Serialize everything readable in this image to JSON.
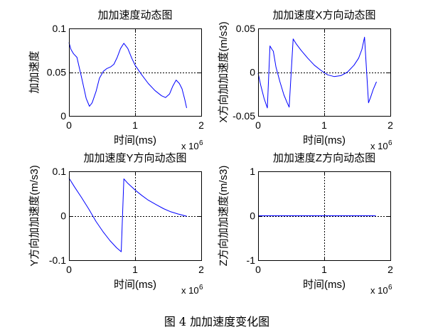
{
  "figure": {
    "caption": "图 4 加加速度变化图"
  },
  "style": {
    "axes_color": "#000000",
    "grid_color": "#000000",
    "background": "#ffffff"
  },
  "chart_data": [
    {
      "type": "line",
      "title": "加加速度动态图",
      "xlabel": "时间(ms)",
      "ylabel": "加加速度",
      "x_multiplier": "x 10",
      "x_exponent": "6",
      "xlim": [
        0,
        2
      ],
      "ylim": [
        0,
        0.1
      ],
      "xtick_labels": [
        "0",
        "1",
        "2"
      ],
      "ytick_labels": [
        "0",
        "0.05",
        "0.1"
      ],
      "grid": true,
      "series": [
        {
          "color": "#0000ff",
          "x": [
            0,
            0.03,
            0.07,
            0.12,
            0.19,
            0.26,
            0.31,
            0.35,
            0.41,
            0.46,
            0.52,
            0.57,
            0.63,
            0.68,
            0.73,
            0.78,
            0.83,
            0.89,
            0.95,
            1.0,
            1.1,
            1.2,
            1.3,
            1.4,
            1.46,
            1.52,
            1.57,
            1.62,
            1.67,
            1.71,
            1.75,
            1.78
          ],
          "y": [
            0.084,
            0.076,
            0.071,
            0.067,
            0.044,
            0.02,
            0.011,
            0.015,
            0.028,
            0.043,
            0.051,
            0.054,
            0.056,
            0.059,
            0.067,
            0.077,
            0.083,
            0.077,
            0.066,
            0.058,
            0.047,
            0.037,
            0.029,
            0.023,
            0.021,
            0.025,
            0.034,
            0.041,
            0.037,
            0.031,
            0.019,
            0.009
          ]
        }
      ]
    },
    {
      "type": "line",
      "title": "加加速度X方向动态图",
      "xlabel": "时间(ms)",
      "ylabel": "X方向加加速度(m/s3)",
      "x_multiplier": "x 10",
      "x_exponent": "6",
      "xlim": [
        0,
        2
      ],
      "ylim": [
        -0.05,
        0.05
      ],
      "xtick_labels": [
        "0",
        "1",
        "2"
      ],
      "ytick_labels": [
        "-0.05",
        "0",
        "0.05"
      ],
      "grid": true,
      "series": [
        {
          "color": "#0000ff",
          "x": [
            0,
            0.04,
            0.09,
            0.14,
            0.18,
            0.21,
            0.23,
            0.27,
            0.33,
            0.39,
            0.44,
            0.47,
            0.53,
            0.58,
            0.65,
            0.75,
            0.85,
            0.95,
            1.05,
            1.15,
            1.25,
            1.35,
            1.45,
            1.52,
            1.57,
            1.61,
            1.67,
            1.7,
            1.74,
            1.79
          ],
          "y": [
            -0.001,
            -0.015,
            -0.03,
            -0.041,
            0.03,
            0.026,
            0.024,
            0.006,
            -0.011,
            -0.026,
            -0.035,
            -0.04,
            0.038,
            0.032,
            0.025,
            0.016,
            0.008,
            0.002,
            -0.003,
            -0.005,
            -0.004,
            0.0,
            0.008,
            0.016,
            0.026,
            0.04,
            -0.035,
            -0.029,
            -0.02,
            -0.011
          ]
        }
      ]
    },
    {
      "type": "line",
      "title": "加加速度Y方向动态图",
      "xlabel": "时间(ms)",
      "ylabel": "Y方向加加速度(m/s3)",
      "x_multiplier": "x 10",
      "x_exponent": "6",
      "xlim": [
        0,
        2
      ],
      "ylim": [
        -0.1,
        0.1
      ],
      "xtick_labels": [
        "0",
        "1",
        "2"
      ],
      "ytick_labels": [
        "-0.1",
        "0",
        "0.1"
      ],
      "grid": true,
      "series": [
        {
          "color": "#0000ff",
          "x": [
            0,
            0.08,
            0.19,
            0.3,
            0.41,
            0.52,
            0.62,
            0.72,
            0.79,
            0.83,
            0.89,
            1.0,
            1.1,
            1.2,
            1.32,
            1.43,
            1.54,
            1.65,
            1.78
          ],
          "y": [
            0.085,
            0.066,
            0.041,
            0.015,
            -0.013,
            -0.037,
            -0.056,
            -0.072,
            -0.081,
            0.083,
            0.073,
            0.058,
            0.046,
            0.035,
            0.025,
            0.016,
            0.009,
            0.004,
            -0.001
          ]
        }
      ]
    },
    {
      "type": "line",
      "title": "加加速度Z方向动态图",
      "xlabel": "时间(ms)",
      "ylabel": "Z方向加加速度(m/s3)",
      "x_multiplier": "x 10",
      "x_exponent": "6",
      "xlim": [
        0,
        2
      ],
      "ylim": [
        -1,
        1
      ],
      "xtick_labels": [
        "0",
        "1",
        "2"
      ],
      "ytick_labels": [
        "-1",
        "0",
        "1"
      ],
      "grid": true,
      "series": [
        {
          "color": "#0000ff",
          "x": [
            0,
            1.78
          ],
          "y": [
            0,
            0
          ]
        }
      ]
    }
  ]
}
